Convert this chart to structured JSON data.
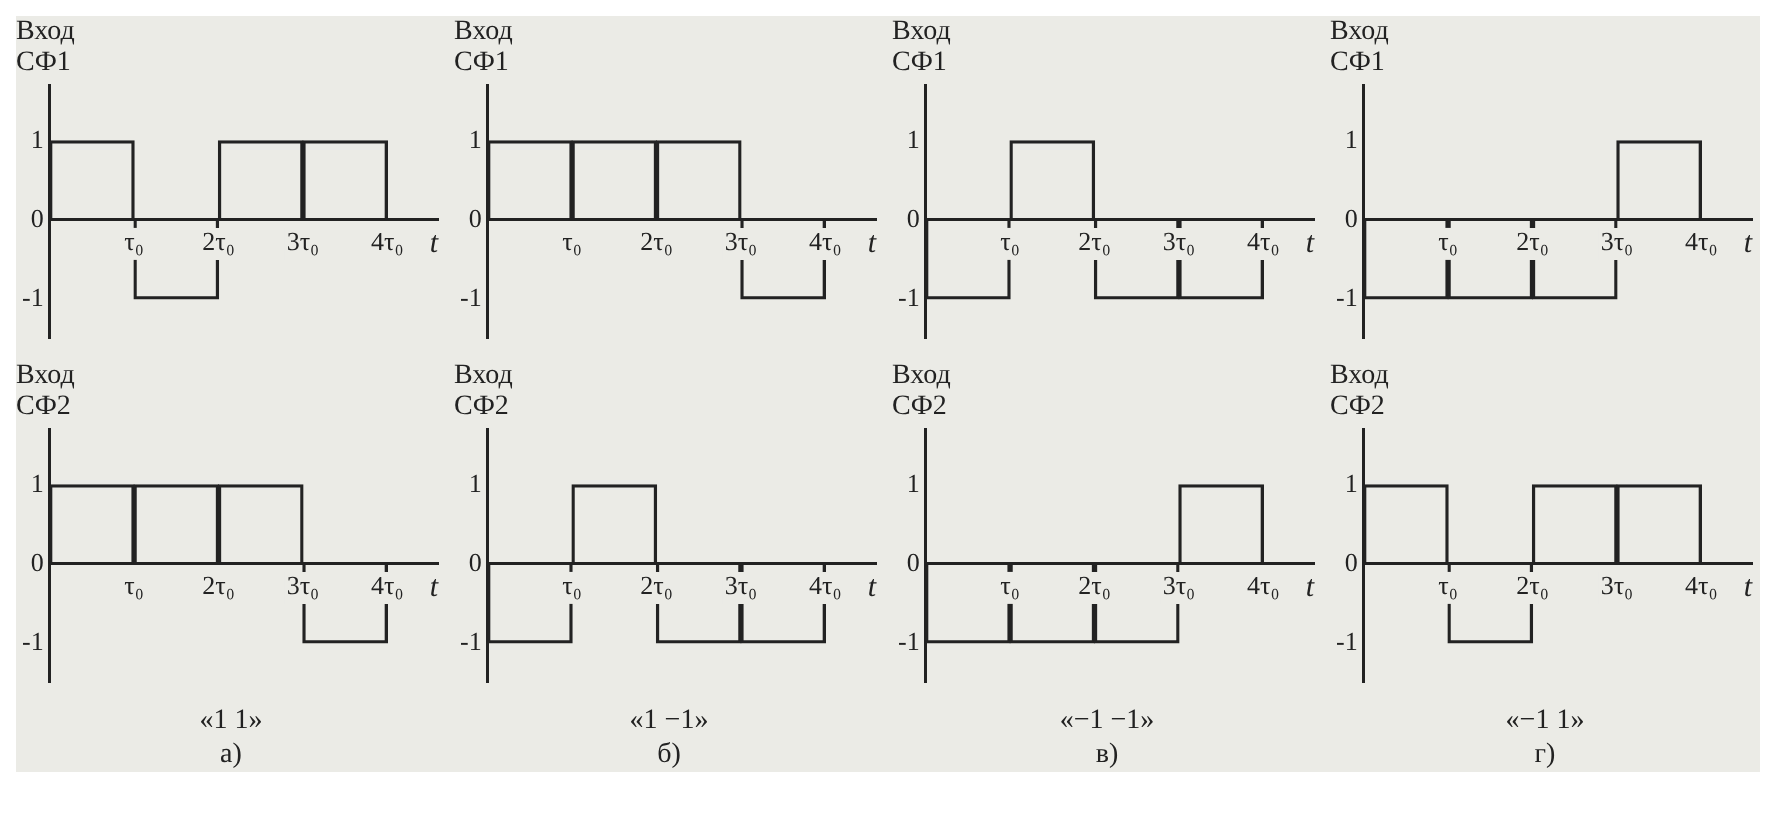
{
  "chart_data": [
    {
      "type": "bar",
      "ylabel": "Вход СФ1",
      "xlabel": "t",
      "x": [
        0.5,
        1.5,
        2.5,
        3.5
      ],
      "values": [
        1,
        -1,
        1,
        1
      ],
      "color": "#222222",
      "xlim": [
        0,
        4.6
      ],
      "xticks": [
        {
          "value": 1,
          "label": "τ₀"
        },
        {
          "value": 2,
          "label": "2τ₀"
        },
        {
          "value": 3,
          "label": "3τ₀"
        },
        {
          "value": 4,
          "label": "4τ₀"
        }
      ],
      "ylim": [
        -1.5,
        1.7
      ],
      "yticks": [
        -1,
        0,
        1
      ]
    },
    {
      "type": "bar",
      "ylabel": "Вход СФ1",
      "xlabel": "t",
      "x": [
        0.5,
        1.5,
        2.5,
        3.5
      ],
      "values": [
        1,
        1,
        1,
        -1
      ],
      "color": "#222222",
      "xlim": [
        0,
        4.6
      ],
      "xticks": [
        {
          "value": 1,
          "label": "τ₀"
        },
        {
          "value": 2,
          "label": "2τ₀"
        },
        {
          "value": 3,
          "label": "3τ₀"
        },
        {
          "value": 4,
          "label": "4τ₀"
        }
      ],
      "ylim": [
        -1.5,
        1.7
      ],
      "yticks": [
        -1,
        0,
        1
      ]
    },
    {
      "type": "bar",
      "ylabel": "Вход СФ1",
      "xlabel": "t",
      "x": [
        0.5,
        1.5,
        2.5,
        3.5
      ],
      "values": [
        -1,
        1,
        -1,
        -1
      ],
      "color": "#222222",
      "xlim": [
        0,
        4.6
      ],
      "xticks": [
        {
          "value": 1,
          "label": "τ₀"
        },
        {
          "value": 2,
          "label": "2τ₀"
        },
        {
          "value": 3,
          "label": "3τ₀"
        },
        {
          "value": 4,
          "label": "4τ₀"
        }
      ],
      "ylim": [
        -1.5,
        1.7
      ],
      "yticks": [
        -1,
        0,
        1
      ]
    },
    {
      "type": "bar",
      "ylabel": "Вход СФ1",
      "xlabel": "t",
      "x": [
        0.5,
        1.5,
        2.5,
        3.5
      ],
      "values": [
        -1,
        -1,
        -1,
        1
      ],
      "color": "#222222",
      "xlim": [
        0,
        4.6
      ],
      "xticks": [
        {
          "value": 1,
          "label": "τ₀"
        },
        {
          "value": 2,
          "label": "2τ₀"
        },
        {
          "value": 3,
          "label": "3τ₀"
        },
        {
          "value": 4,
          "label": "4τ₀"
        }
      ],
      "ylim": [
        -1.5,
        1.7
      ],
      "yticks": [
        -1,
        0,
        1
      ]
    },
    {
      "type": "bar",
      "ylabel": "Вход СФ2",
      "xlabel": "t",
      "x": [
        0.5,
        1.5,
        2.5,
        3.5
      ],
      "values": [
        1,
        1,
        1,
        -1
      ],
      "color": "#222222",
      "xlim": [
        0,
        4.6
      ],
      "xticks": [
        {
          "value": 1,
          "label": "τ₀"
        },
        {
          "value": 2,
          "label": "2τ₀"
        },
        {
          "value": 3,
          "label": "3τ₀"
        },
        {
          "value": 4,
          "label": "4τ₀"
        }
      ],
      "ylim": [
        -1.5,
        1.7
      ],
      "yticks": [
        -1,
        0,
        1
      ],
      "annotations": [
        "«1 1»",
        "а)"
      ]
    },
    {
      "type": "bar",
      "ylabel": "Вход СФ2",
      "xlabel": "t",
      "x": [
        0.5,
        1.5,
        2.5,
        3.5
      ],
      "values": [
        -1,
        1,
        -1,
        -1
      ],
      "color": "#222222",
      "xlim": [
        0,
        4.6
      ],
      "xticks": [
        {
          "value": 1,
          "label": "τ₀"
        },
        {
          "value": 2,
          "label": "2τ₀"
        },
        {
          "value": 3,
          "label": "3τ₀"
        },
        {
          "value": 4,
          "label": "4τ₀"
        }
      ],
      "ylim": [
        -1.5,
        1.7
      ],
      "yticks": [
        -1,
        0,
        1
      ],
      "annotations": [
        "«1 −1»",
        "б)"
      ]
    },
    {
      "type": "bar",
      "ylabel": "Вход СФ2",
      "xlabel": "t",
      "x": [
        0.5,
        1.5,
        2.5,
        3.5
      ],
      "values": [
        -1,
        -1,
        -1,
        1
      ],
      "color": "#222222",
      "xlim": [
        0,
        4.6
      ],
      "xticks": [
        {
          "value": 1,
          "label": "τ₀"
        },
        {
          "value": 2,
          "label": "2τ₀"
        },
        {
          "value": 3,
          "label": "3τ₀"
        },
        {
          "value": 4,
          "label": "4τ₀"
        }
      ],
      "ylim": [
        -1.5,
        1.7
      ],
      "yticks": [
        -1,
        0,
        1
      ],
      "annotations": [
        "«−1 −1»",
        "в)"
      ]
    },
    {
      "type": "bar",
      "ylabel": "Вход СФ2",
      "xlabel": "t",
      "x": [
        0.5,
        1.5,
        2.5,
        3.5
      ],
      "values": [
        1,
        -1,
        1,
        1
      ],
      "color": "#222222",
      "xlim": [
        0,
        4.6
      ],
      "xticks": [
        {
          "value": 1,
          "label": "τ₀"
        },
        {
          "value": 2,
          "label": "2τ₀"
        },
        {
          "value": 3,
          "label": "3τ₀"
        },
        {
          "value": 4,
          "label": "4τ₀"
        }
      ],
      "ylim": [
        -1.5,
        1.7
      ],
      "yticks": [
        -1,
        0,
        1
      ],
      "annotations": [
        "«−1 1»",
        "г)"
      ]
    }
  ]
}
